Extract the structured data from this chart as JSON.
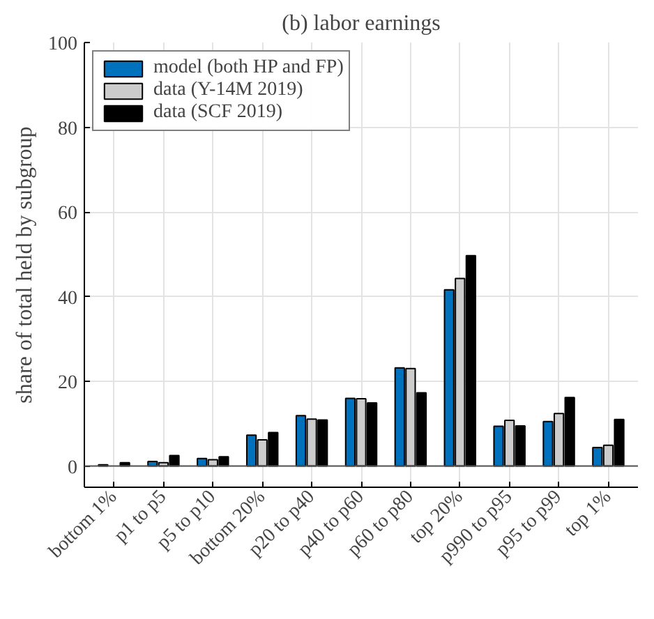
{
  "chart_data": {
    "type": "bar",
    "title": "(b) labor earnings",
    "ylabel": "share of total held by subgroup",
    "categories": [
      "bottom 1%",
      "p1 to p5",
      "p5 to p10",
      "bottom 20%",
      "p20 to p40",
      "p40 to p60",
      "p60 to p80",
      "top 20%",
      "p990 to p95",
      "p95 to p99",
      "top 1%"
    ],
    "series": [
      {
        "name": "model (both HP and FP)",
        "color": "#0072bd",
        "values": [
          0.3,
          1.1,
          1.8,
          7.3,
          11.9,
          16.0,
          23.2,
          41.6,
          9.4,
          10.5,
          4.4
        ]
      },
      {
        "name": "data (Y-14M 2019)",
        "color": "#cccccc",
        "values": [
          null,
          0.8,
          1.5,
          6.2,
          11.1,
          15.9,
          23.0,
          44.3,
          10.8,
          12.4,
          4.9
        ]
      },
      {
        "name": "data (SCF 2019)",
        "color": "#000000",
        "values": [
          0.8,
          2.5,
          2.2,
          7.9,
          10.9,
          14.9,
          17.3,
          49.7,
          9.5,
          16.2,
          11.0
        ]
      }
    ],
    "ylim": [
      -5,
      100
    ],
    "yticks": [
      0,
      20,
      40,
      60,
      80,
      100
    ],
    "grid": true,
    "legend": "top left"
  }
}
